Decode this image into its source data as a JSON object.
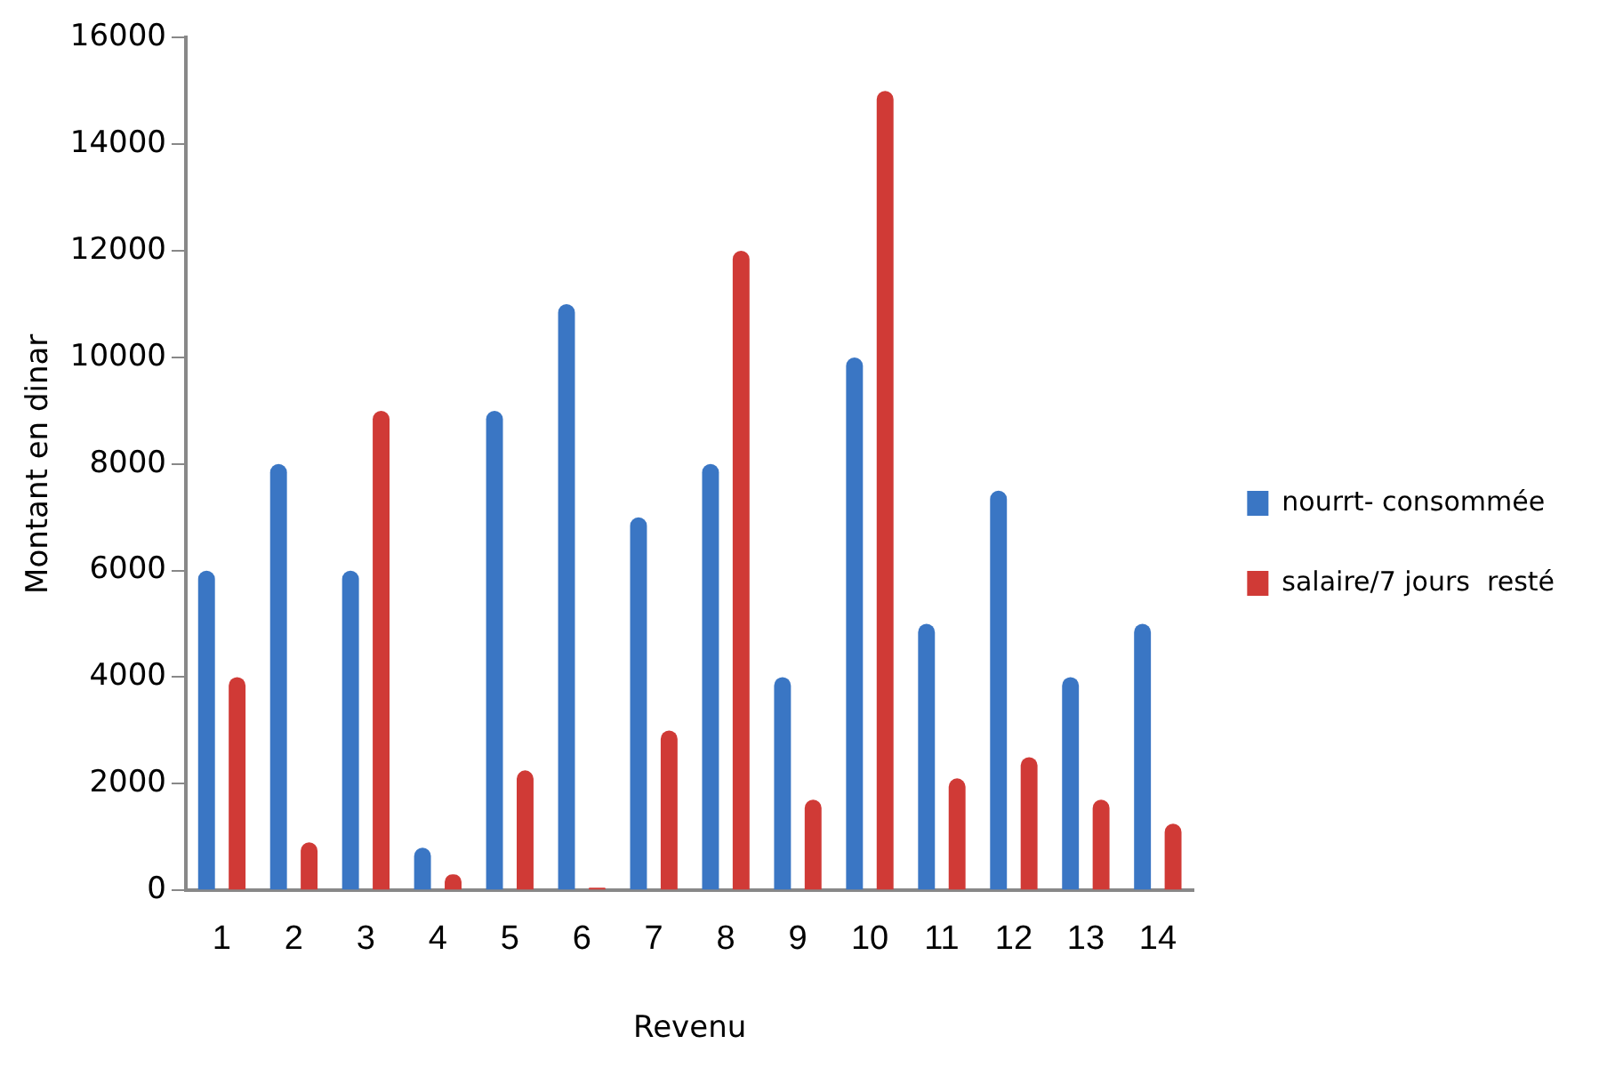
{
  "chart_data": {
    "type": "bar",
    "xlabel": "Revenu",
    "ylabel": "Montant en dinar",
    "categories": [
      "1",
      "2",
      "3",
      "4",
      "5",
      "6",
      "7",
      "8",
      "9",
      "10",
      "11",
      "12",
      "13",
      "14"
    ],
    "series": [
      {
        "name": "nourrt- consommée",
        "color": "#3a76c4",
        "values": [
          6000,
          8000,
          6000,
          800,
          9000,
          11000,
          7000,
          8000,
          4000,
          10000,
          5000,
          7500,
          4000,
          5000
        ]
      },
      {
        "name": "salaire/7 jours  resté",
        "color": "#d03a36",
        "values": [
          4000,
          900,
          9000,
          300,
          2250,
          50,
          3000,
          12000,
          1700,
          15000,
          2100,
          2500,
          1700,
          1250
        ]
      }
    ],
    "ylim": [
      0,
      16000
    ],
    "yticks": [
      0,
      2000,
      4000,
      6000,
      8000,
      10000,
      12000,
      14000,
      16000
    ],
    "grid": false,
    "legend": "right"
  }
}
